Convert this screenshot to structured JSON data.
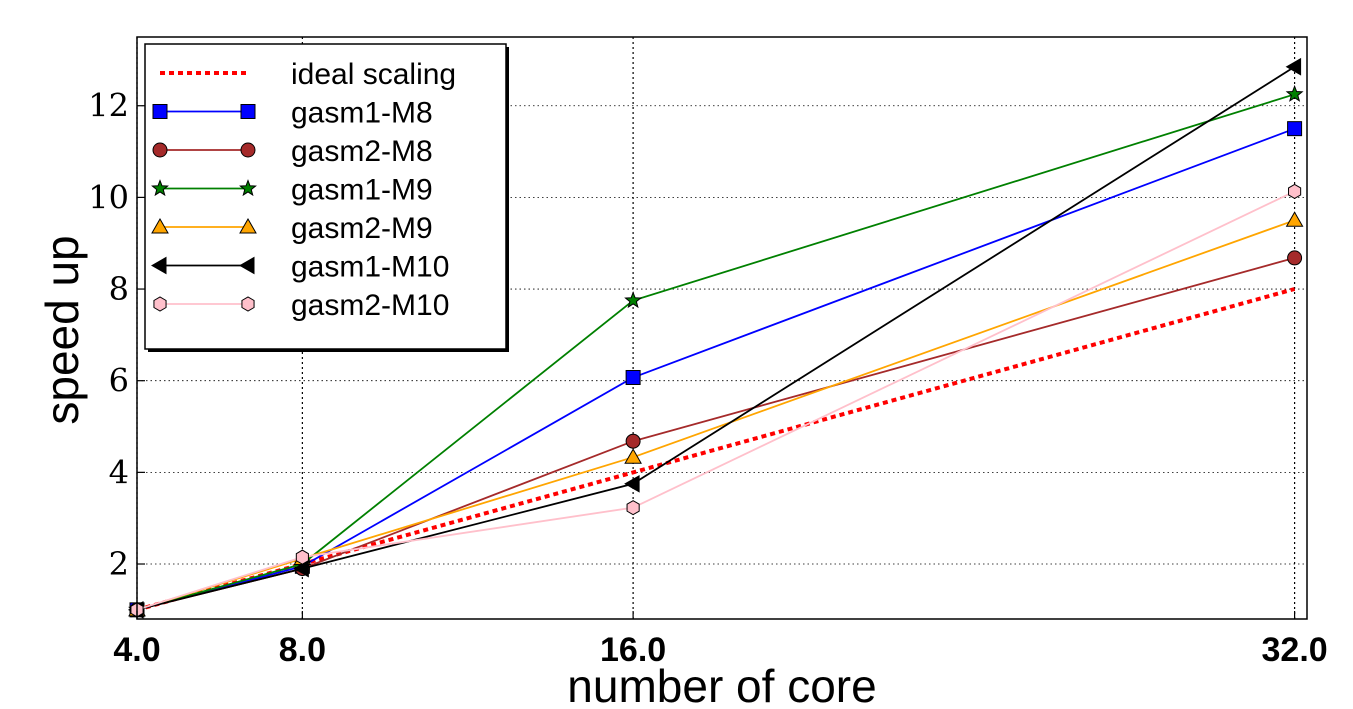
{
  "chart_data": {
    "type": "line",
    "title": "",
    "xlabel": "number of core",
    "ylabel": "speed up",
    "x": [
      4,
      8,
      16,
      32
    ],
    "xtick_labels": [
      "4.0",
      "8.0",
      "16.0",
      "32.0"
    ],
    "xlim": [
      4,
      32.3
    ],
    "ylim": [
      0.8,
      13.5
    ],
    "yticks": [
      2,
      4,
      6,
      8,
      10,
      12
    ],
    "ytick_labels": [
      "2",
      "4",
      "6",
      "8",
      "10",
      "12"
    ],
    "grid": true,
    "legend_position": "upper-left",
    "series": [
      {
        "name": "ideal scaling",
        "values": [
          1,
          2,
          4,
          8
        ],
        "color": "#ff0000",
        "style": "dotted",
        "marker": "none"
      },
      {
        "name": "gasm1-M8",
        "values": [
          1,
          1.95,
          6.07,
          11.5
        ],
        "color": "#0000ff",
        "style": "solid",
        "marker": "square",
        "marker_fill": "#0000ff"
      },
      {
        "name": "gasm2-M8",
        "values": [
          1,
          1.9,
          4.68,
          8.68
        ],
        "color": "#a52a2a",
        "style": "solid",
        "marker": "circle",
        "marker_fill": "#a52a2a"
      },
      {
        "name": "gasm1-M9",
        "values": [
          1,
          2.0,
          7.75,
          12.25
        ],
        "color": "#008000",
        "style": "solid",
        "marker": "star",
        "marker_fill": "#008000"
      },
      {
        "name": "gasm2-M9",
        "values": [
          1,
          2.12,
          4.33,
          9.5
        ],
        "color": "#ffa500",
        "style": "solid",
        "marker": "triangle-up",
        "marker_fill": "#ffa500"
      },
      {
        "name": "gasm1-M10",
        "values": [
          1,
          1.9,
          3.75,
          12.85
        ],
        "color": "#000000",
        "style": "solid",
        "marker": "triangle-left",
        "marker_fill": "#000000"
      },
      {
        "name": "gasm2-M10",
        "values": [
          1,
          2.15,
          3.23,
          10.13
        ],
        "color": "#ffc0cb",
        "style": "solid",
        "marker": "hexagon",
        "marker_fill": "#ffc0cb"
      }
    ]
  }
}
